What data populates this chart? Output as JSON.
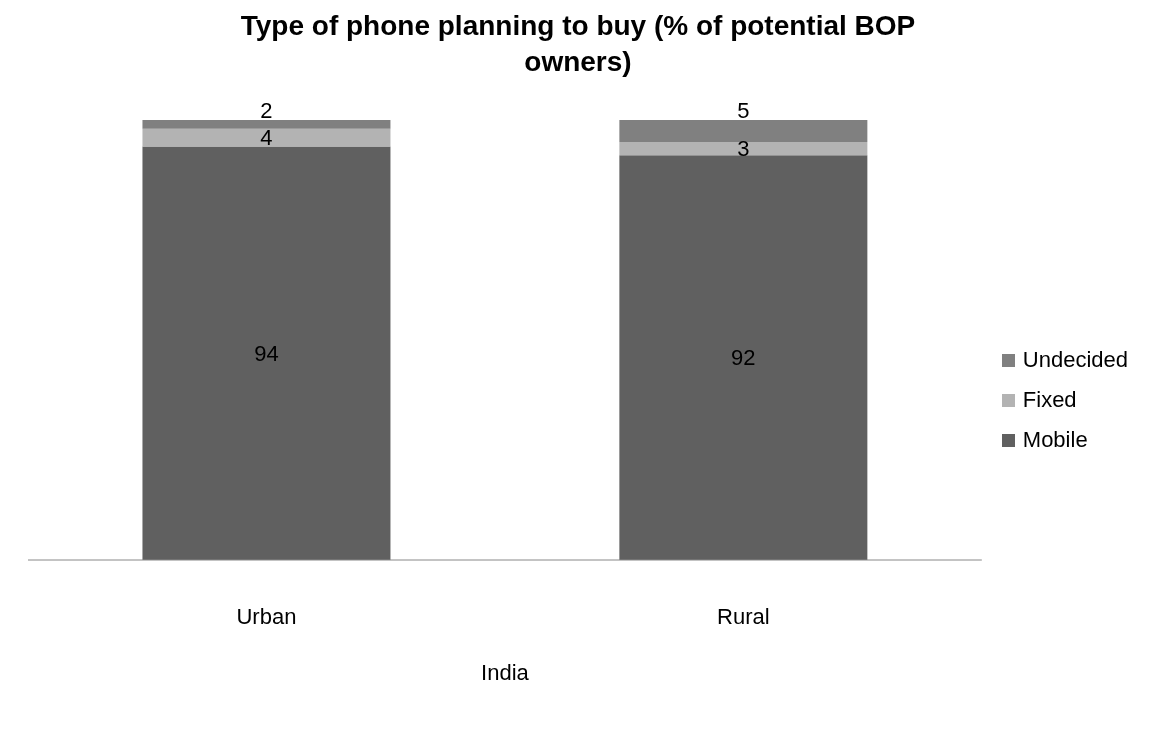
{
  "chart_data": {
    "type": "bar",
    "title": "Type of phone planning to buy (% of potential BOP owners)",
    "categories": [
      "Urban",
      "Rural"
    ],
    "xlabel": "India",
    "stacked": true,
    "data_labels": true,
    "legend": "right",
    "grid": false,
    "tick_labels": "x",
    "series": [
      {
        "name": "Mobile",
        "color": "#606060",
        "values": [
          94,
          92
        ]
      },
      {
        "name": "Fixed",
        "color": "#b3b3b3",
        "values": [
          4,
          3
        ]
      },
      {
        "name": "Undecided",
        "color": "#808080",
        "values": [
          2,
          5
        ]
      }
    ]
  }
}
